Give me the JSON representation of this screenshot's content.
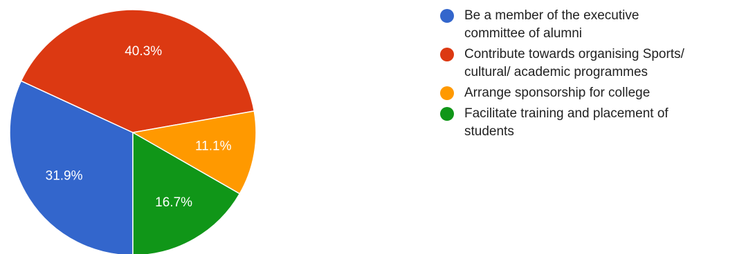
{
  "chart_data": {
    "type": "pie",
    "slices": [
      {
        "label": "Be a member of the executive\ncommittee of alumni",
        "value": 31.9,
        "value_label": "31.9%",
        "color": "#3366cc"
      },
      {
        "label": "Contribute towards organising Sports/\ncultural/ academic programmes",
        "value": 40.3,
        "value_label": "40.3%",
        "color": "#dc3912"
      },
      {
        "label": "Arrange sponsorship for college",
        "value": 11.1,
        "value_label": "11.1%",
        "color": "#ff9900"
      },
      {
        "label": "Facilitate training and placement of\nstudents",
        "value": 16.7,
        "value_label": "16.7%",
        "color": "#109618"
      }
    ],
    "start_angle_deg": 90,
    "direction": "clockwise",
    "legend_position": "right"
  }
}
